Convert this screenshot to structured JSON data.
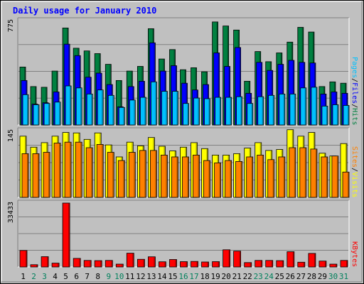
{
  "chart_data": {
    "type": "bar",
    "title": "Daily usage for January 2010",
    "categories": [
      "1",
      "2",
      "3",
      "4",
      "5",
      "6",
      "7",
      "8",
      "9",
      "10",
      "11",
      "12",
      "13",
      "14",
      "15",
      "16",
      "17",
      "18",
      "19",
      "20",
      "21",
      "22",
      "23",
      "24",
      "25",
      "26",
      "27",
      "28",
      "29",
      "30",
      "31"
    ],
    "weekend_days": [
      "2",
      "3",
      "9",
      "10",
      "16",
      "17",
      "23",
      "24",
      "30",
      "31"
    ],
    "panels": [
      {
        "name": "pages-files-hits",
        "max_label": "775",
        "ymax": 775,
        "grid": true,
        "legend": [
          {
            "text": "Pages",
            "color": "#00c0ff"
          },
          {
            "text": "/",
            "color": "#000000"
          },
          {
            "text": "Files",
            "color": "#0000ff"
          },
          {
            "text": "/",
            "color": "#000000"
          },
          {
            "text": "Hits",
            "color": "#008040"
          }
        ],
        "series": [
          {
            "name": "Hits",
            "color": "#008040",
            "values": [
              430,
              285,
              280,
              400,
              720,
              570,
              550,
              530,
              450,
              330,
              400,
              435,
              715,
              490,
              560,
              410,
              425,
              395,
              765,
              735,
              705,
              325,
              545,
              470,
              535,
              615,
              725,
              690,
              285,
              320,
              310
            ]
          },
          {
            "name": "Files",
            "color": "#0000ff",
            "values": [
              330,
              155,
              165,
              245,
              600,
              515,
              355,
              385,
              300,
              135,
              285,
              325,
              610,
              400,
              440,
              310,
              260,
              300,
              535,
              435,
              575,
              235,
              465,
              405,
              450,
              480,
              465,
              460,
              230,
              245,
              235
            ]
          },
          {
            "name": "Pages",
            "color": "#00c0ff",
            "values": [
              225,
              150,
              160,
              170,
              290,
              275,
              230,
              260,
              220,
              130,
              185,
              205,
              320,
              250,
              250,
              160,
              200,
              195,
              205,
              205,
              210,
              160,
              210,
              220,
              230,
              230,
              275,
              280,
              140,
              150,
              145
            ]
          }
        ]
      },
      {
        "name": "sites-visits",
        "max_label": "145",
        "ymax": 145,
        "grid": true,
        "legend": [
          {
            "text": "Sites",
            "color": "#ff8000"
          },
          {
            "text": "/",
            "color": "#000000"
          },
          {
            "text": "Visits",
            "color": "#ffff00"
          }
        ],
        "series": [
          {
            "name": "Visits",
            "color": "#ffff00",
            "values": [
              133,
              109,
              119,
              133,
              141,
              140,
              126,
              140,
              114,
              88,
              120,
              112,
              130,
              111,
              101,
              109,
              119,
              106,
              92,
              92,
              95,
              107,
              119,
              102,
              104,
              147,
              133,
              141,
              96,
              90,
              117
            ]
          },
          {
            "name": "Sites",
            "color": "#ff8000",
            "values": [
              95,
              95,
              98,
              118,
              120,
              120,
              108,
              115,
              98,
              80,
              98,
              102,
              102,
              92,
              88,
              88,
              92,
              80,
              75,
              80,
              78,
              88,
              92,
              82,
              88,
              108,
              108,
              105,
              88,
              90,
              55
            ]
          }
        ]
      },
      {
        "name": "kbytes",
        "max_label": "33433",
        "ymax": 33433,
        "grid": true,
        "legend": [
          {
            "text": "KBytes",
            "color": "#ff0000"
          }
        ],
        "series": [
          {
            "name": "KBytes",
            "color": "#ff0000",
            "values": [
              8600,
              1200,
              5400,
              2000,
              33433,
              4500,
              3400,
              3300,
              3400,
              1500,
              7200,
              4000,
              5300,
              2700,
              3900,
              2800,
              2900,
              2600,
              2800,
              9000,
              8300,
              2300,
              3400,
              3400,
              3300,
              8000,
              2500,
              7100,
              3100,
              1500,
              3400
            ]
          }
        ]
      }
    ]
  }
}
